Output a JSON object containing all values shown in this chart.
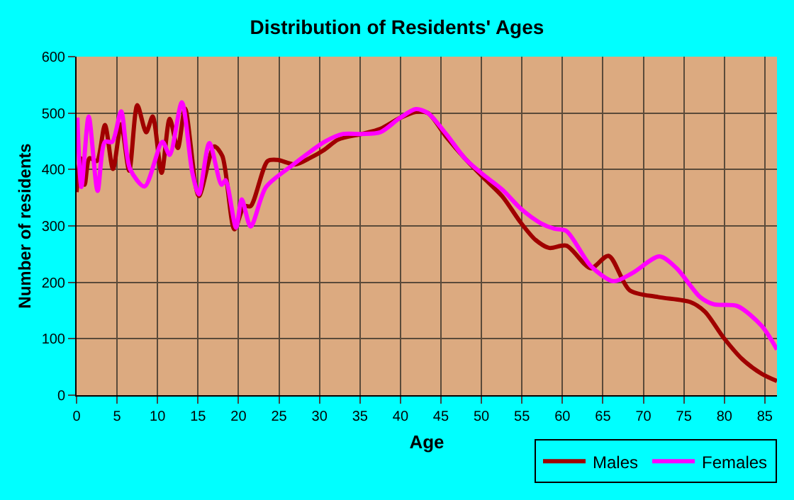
{
  "chart_data": {
    "type": "line",
    "title": "Distribution of Residents' Ages",
    "xlabel": "Age",
    "ylabel": "Number of residents",
    "xlim": [
      0,
      86.5
    ],
    "xticks": [
      0,
      5,
      10,
      15,
      20,
      25,
      30,
      35,
      40,
      45,
      50,
      55,
      60,
      65,
      70,
      75,
      80,
      85
    ],
    "ylim": [
      0,
      600
    ],
    "yticks": [
      0,
      100,
      200,
      300,
      400,
      500,
      600
    ],
    "grid": true,
    "legend": "bottom right",
    "marker": "none",
    "line_style": "solid",
    "series": [
      {
        "name": "Males",
        "color": "#a00000",
        "x": [
          0,
          0.5,
          1,
          1.6,
          2.5,
          3.5,
          4.5,
          5.5,
          6.5,
          7.5,
          8.6,
          9.4,
          10.5,
          11.5,
          12.5,
          13.4,
          15.1,
          17,
          18,
          19.5,
          20.7,
          21.5,
          23.6,
          24.8,
          27,
          28.9,
          30.6,
          32.3,
          35.2,
          37.5,
          39.9,
          41.9,
          43.4,
          45.7,
          48,
          50.3,
          52.6,
          54.9,
          56.7,
          58.4,
          60.5,
          63.5,
          65.7,
          68.3,
          71.8,
          75.8,
          77.6,
          79.9,
          82.2,
          84.6,
          86.5
        ],
        "values": [
          360,
          420,
          373,
          420,
          415,
          479,
          401,
          480,
          398,
          514,
          466,
          494,
          394,
          490,
          438,
          508,
          353,
          441,
          424,
          294,
          335,
          335,
          415,
          417,
          409,
          421,
          435,
          453,
          463,
          472,
          491,
          502,
          500,
          457,
          419,
          385,
          352,
          305,
          275,
          261,
          265,
          225,
          247,
          186,
          174,
          165,
          148,
          102,
          64,
          38,
          25
        ]
      },
      {
        "name": "Females",
        "color": "#ff00ff",
        "x": [
          0.1,
          0.6,
          1.5,
          2.6,
          3.5,
          4.4,
          5.5,
          6.6,
          8.4,
          10.6,
          11.5,
          13,
          14.3,
          15.1,
          16.4,
          17.9,
          18.4,
          19.7,
          20.4,
          21.5,
          23.4,
          26.6,
          28.9,
          30.6,
          32.9,
          35.2,
          37.5,
          39.9,
          41.9,
          43.4,
          45.7,
          48,
          50.3,
          52.6,
          54.9,
          57.3,
          59,
          60.5,
          63.5,
          66.3,
          68.6,
          72,
          74.1,
          77,
          78.7,
          81.6,
          84.6,
          86.5
        ],
        "values": [
          492,
          369,
          494,
          362,
          449,
          449,
          503,
          401,
          370,
          449,
          426,
          519,
          394,
          356,
          447,
          373,
          381,
          297,
          347,
          299,
          369,
          407,
          432,
          449,
          463,
          463,
          466,
          491,
          507,
          500,
          462,
          419,
          390,
          364,
          330,
          305,
          295,
          291,
          229,
          202,
          216,
          246,
          225,
          174,
          161,
          158,
          123,
          81
        ]
      }
    ]
  }
}
